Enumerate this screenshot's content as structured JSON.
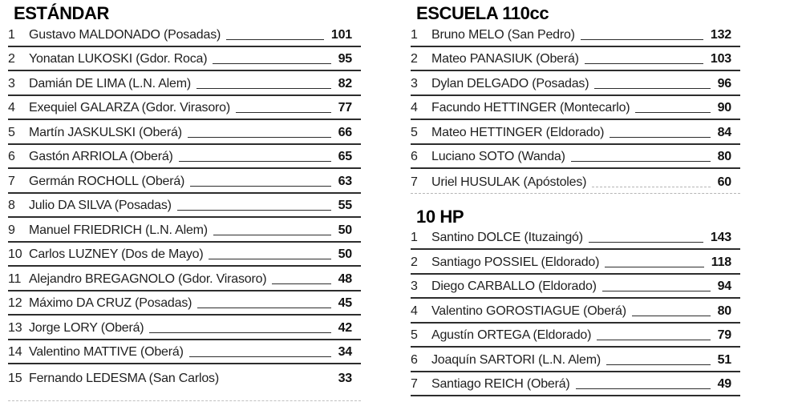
{
  "page": {
    "background": "#ffffff",
    "text_color": "#1f1f1f",
    "rule_color": "#2d2d2d",
    "dashed_rule_color": "#b5b5b5"
  },
  "sections": [
    {
      "id": "estandar",
      "title": "ESTÁNDAR",
      "column": "left",
      "last_row_rule": "none",
      "rows": [
        {
          "rank": "1",
          "name": "Gustavo MALDONADO (Posadas)",
          "points": "101"
        },
        {
          "rank": "2",
          "name": "Yonatan LUKOSKI (Gdor. Roca)",
          "points": "95"
        },
        {
          "rank": "3",
          "name": "Damián DE LIMA (L.N. Alem)",
          "points": "82"
        },
        {
          "rank": "4",
          "name": "Exequiel GALARZA (Gdor. Virasoro)",
          "points": "77"
        },
        {
          "rank": "5",
          "name": "Martín JASKULSKI (Oberá)",
          "points": "66"
        },
        {
          "rank": "6",
          "name": "Gastón ARRIOLA (Oberá)",
          "points": "65"
        },
        {
          "rank": "7",
          "name": "Germán ROCHOLL (Oberá)",
          "points": "63"
        },
        {
          "rank": "8",
          "name": "Julio DA SILVA (Posadas)",
          "points": "55"
        },
        {
          "rank": "9",
          "name": "Manuel FRIEDRICH (L.N. Alem)",
          "points": "50"
        },
        {
          "rank": "10",
          "name": "Carlos LUZNEY (Dos de Mayo)",
          "points": "50"
        },
        {
          "rank": "11",
          "name": "Alejandro BREGAGNOLO (Gdor. Virasoro)",
          "points": "48"
        },
        {
          "rank": "12",
          "name": "Máximo DA CRUZ (Posadas)",
          "points": "45"
        },
        {
          "rank": "13",
          "name": "Jorge LORY (Oberá)",
          "points": "42"
        },
        {
          "rank": "14",
          "name": "Valentino MATTIVE (Oberá)",
          "points": "34"
        },
        {
          "rank": "15",
          "name": "Fernando LEDESMA (San Carlos)",
          "points": "33"
        }
      ]
    },
    {
      "id": "escuela-110cc",
      "title": "ESCUELA 110cc",
      "column": "right",
      "last_row_rule": "dashed",
      "rows": [
        {
          "rank": "1",
          "name": "Bruno MELO (San Pedro)",
          "points": "132"
        },
        {
          "rank": "2",
          "name": "Mateo PANASIUK (Oberá)",
          "points": "103"
        },
        {
          "rank": "3",
          "name": "Dylan DELGADO (Posadas)",
          "points": "96"
        },
        {
          "rank": "4",
          "name": "Facundo HETTINGER (Montecarlo)",
          "points": "90"
        },
        {
          "rank": "5",
          "name": "Mateo HETTINGER (Eldorado)",
          "points": "84"
        },
        {
          "rank": "6",
          "name": "Luciano SOTO (Wanda)",
          "points": "80"
        },
        {
          "rank": "7",
          "name": "Uriel HUSULAK (Apóstoles)",
          "points": "60"
        }
      ]
    },
    {
      "id": "10-hp",
      "title": "10 HP",
      "column": "right",
      "last_row_rule": "solid",
      "rows": [
        {
          "rank": "1",
          "name": "Santino DOLCE (Ituzaingó)",
          "points": "143"
        },
        {
          "rank": "2",
          "name": "Santiago POSSIEL (Eldorado)",
          "points": "118"
        },
        {
          "rank": "3",
          "name": "Diego CARBALLO (Eldorado)",
          "points": "94"
        },
        {
          "rank": "4",
          "name": "Valentino GOROSTIAGUE (Oberá)",
          "points": "80"
        },
        {
          "rank": "5",
          "name": "Agustín ORTEGA (Eldorado)",
          "points": "79"
        },
        {
          "rank": "6",
          "name": "Joaquín SARTORI (L.N. Alem)",
          "points": "51"
        },
        {
          "rank": "7",
          "name": "Santiago REICH (Oberá)",
          "points": "49"
        }
      ]
    }
  ]
}
